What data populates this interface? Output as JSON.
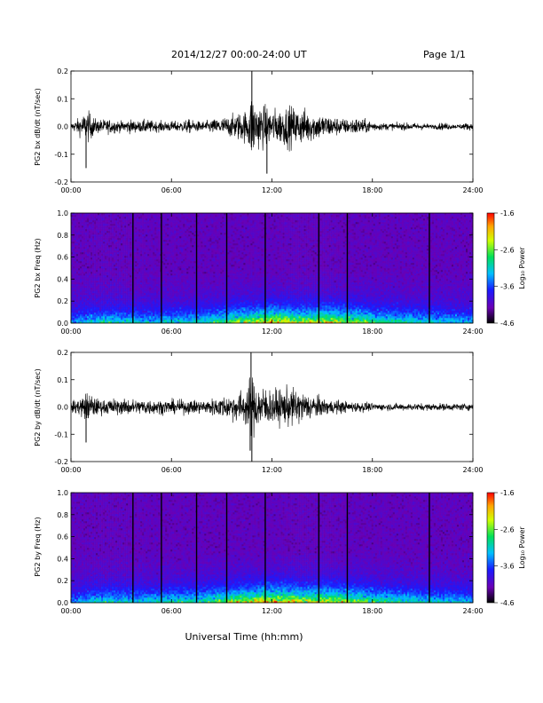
{
  "header": {
    "date_range": "2014/12/27   00:00-24:00 UT",
    "page": "Page 1/1"
  },
  "xlabel": "Universal Time (hh:mm)",
  "colorbar": {
    "label": "Log₁₀ Power",
    "tick_labels": [
      "-1.6",
      "-2.6",
      "-3.6",
      "-4.6"
    ]
  },
  "chart_data": [
    {
      "type": "line",
      "title": "",
      "ylabel": "PG2 bx dB/dt (nT/sec)",
      "xlabel": "",
      "x_tick_labels": [
        "00:00",
        "06:00",
        "12:00",
        "18:00",
        "24:00"
      ],
      "y_tick_labels": [
        "0.2",
        "0.1",
        "0.0",
        "-0.1",
        "-0.2"
      ],
      "xlim_hours": [
        0,
        24
      ],
      "ylim": [
        -0.2,
        0.2
      ],
      "series": [
        {
          "x_hours": [
            0,
            0.5,
            1,
            1.5,
            2,
            2.5,
            3,
            3.5,
            4,
            4.5,
            5,
            5.5,
            6,
            6.5,
            7,
            7.5,
            8,
            8.5,
            9,
            9.5,
            10,
            10.5,
            10.8,
            11,
            11.5,
            12,
            12.5,
            13,
            13.5,
            14,
            14.5,
            15,
            15.5,
            16,
            16.5,
            17,
            17.5,
            18,
            18.5,
            19,
            19.5,
            20,
            20.5,
            21,
            21.5,
            22,
            22.5,
            23,
            23.5,
            24
          ],
          "amplitude": [
            0.02,
            0.05,
            0.09,
            0.04,
            0.04,
            0.04,
            0.03,
            0.04,
            0.03,
            0.04,
            0.03,
            0.03,
            0.03,
            0.03,
            0.04,
            0.03,
            0.03,
            0.04,
            0.05,
            0.06,
            0.08,
            0.09,
            0.2,
            0.14,
            0.12,
            0.1,
            0.1,
            0.12,
            0.1,
            0.1,
            0.08,
            0.07,
            0.06,
            0.05,
            0.04,
            0.05,
            0.04,
            0.03,
            0.02,
            0.02,
            0.02,
            0.02,
            0.02,
            0.02,
            0.01,
            0.02,
            0.02,
            0.01,
            0.02,
            0.02
          ]
        }
      ],
      "peaks": [
        {
          "x_hours": 10.8,
          "y": 0.2
        },
        {
          "x_hours": 0.9,
          "y": -0.15
        },
        {
          "x_hours": 11.7,
          "y": -0.17
        }
      ]
    },
    {
      "type": "heatmap",
      "title": "",
      "ylabel": "PG2 bx Freq (Hz)",
      "x_tick_labels": [
        "00:00",
        "06:00",
        "12:00",
        "18:00",
        "24:00"
      ],
      "y_tick_labels": [
        "1.0",
        "0.8",
        "0.6",
        "0.4",
        "0.2",
        "0.0"
      ],
      "xlim_hours": [
        0,
        24
      ],
      "ylim": [
        0,
        1.0
      ],
      "zlim": [
        -4.6,
        -1.6
      ],
      "zlabel": "Log₁₀ Power",
      "gap_lines_hours": [
        3.7,
        5.4,
        7.5,
        9.3,
        11.6,
        14.8,
        16.5,
        21.4
      ],
      "activity_hours": [
        0,
        2,
        4,
        6,
        8,
        9,
        10,
        11,
        12,
        13,
        14,
        15,
        16,
        17,
        18,
        20,
        22,
        24
      ],
      "activity_level": [
        0.3,
        0.45,
        0.4,
        0.4,
        0.45,
        0.55,
        0.65,
        0.7,
        0.8,
        0.75,
        0.7,
        0.75,
        0.7,
        0.65,
        0.55,
        0.45,
        0.4,
        0.35
      ]
    },
    {
      "type": "line",
      "title": "",
      "ylabel": "PG2 by dB/dt (nT/sec)",
      "xlabel": "",
      "x_tick_labels": [
        "00:00",
        "06:00",
        "12:00",
        "18:00",
        "24:00"
      ],
      "y_tick_labels": [
        "0.2",
        "0.1",
        "0.0",
        "-0.1",
        "-0.2"
      ],
      "xlim_hours": [
        0,
        24
      ],
      "ylim": [
        -0.2,
        0.2
      ],
      "series": [
        {
          "x_hours": [
            0,
            0.5,
            1,
            1.5,
            2,
            2.5,
            3,
            3.5,
            4,
            4.5,
            5,
            5.5,
            6,
            6.5,
            7,
            7.5,
            8,
            8.5,
            9,
            9.5,
            10,
            10.5,
            10.8,
            11,
            11.5,
            12,
            12.5,
            13,
            13.5,
            14,
            14.5,
            15,
            15.5,
            16,
            16.5,
            17,
            17.5,
            18,
            18.5,
            19,
            19.5,
            20,
            20.5,
            21,
            21.5,
            22,
            22.5,
            23,
            23.5,
            24
          ],
          "amplitude": [
            0.03,
            0.05,
            0.09,
            0.05,
            0.04,
            0.05,
            0.04,
            0.05,
            0.04,
            0.05,
            0.04,
            0.04,
            0.04,
            0.04,
            0.04,
            0.04,
            0.04,
            0.05,
            0.06,
            0.07,
            0.09,
            0.11,
            0.2,
            0.13,
            0.12,
            0.1,
            0.1,
            0.11,
            0.1,
            0.08,
            0.07,
            0.05,
            0.04,
            0.04,
            0.03,
            0.03,
            0.03,
            0.02,
            0.02,
            0.02,
            0.02,
            0.02,
            0.02,
            0.02,
            0.02,
            0.02,
            0.02,
            0.02,
            0.02,
            0.02
          ]
        }
      ],
      "peaks": [
        {
          "x_hours": 10.75,
          "y": 0.2
        },
        {
          "x_hours": 10.8,
          "y": -0.2
        },
        {
          "x_hours": 0.9,
          "y": -0.13
        },
        {
          "x_hours": 10.7,
          "y": -0.16
        }
      ]
    },
    {
      "type": "heatmap",
      "title": "",
      "ylabel": "PG2 by Freq (Hz)",
      "x_tick_labels": [
        "00:00",
        "06:00",
        "12:00",
        "18:00",
        "24:00"
      ],
      "y_tick_labels": [
        "1.0",
        "0.8",
        "0.6",
        "0.4",
        "0.2",
        "0.0"
      ],
      "xlim_hours": [
        0,
        24
      ],
      "ylim": [
        0,
        1.0
      ],
      "zlim": [
        -4.6,
        -1.6
      ],
      "zlabel": "Log₁₀ Power",
      "gap_lines_hours": [
        3.7,
        5.4,
        7.5,
        9.3,
        11.6,
        14.8,
        16.5,
        21.4
      ],
      "activity_hours": [
        0,
        2,
        4,
        6,
        8,
        9,
        10,
        11,
        12,
        13,
        14,
        15,
        16,
        17,
        18,
        20,
        22,
        24
      ],
      "activity_level": [
        0.3,
        0.45,
        0.4,
        0.45,
        0.5,
        0.6,
        0.7,
        0.75,
        0.85,
        0.8,
        0.7,
        0.75,
        0.7,
        0.65,
        0.55,
        0.45,
        0.4,
        0.35
      ]
    }
  ]
}
